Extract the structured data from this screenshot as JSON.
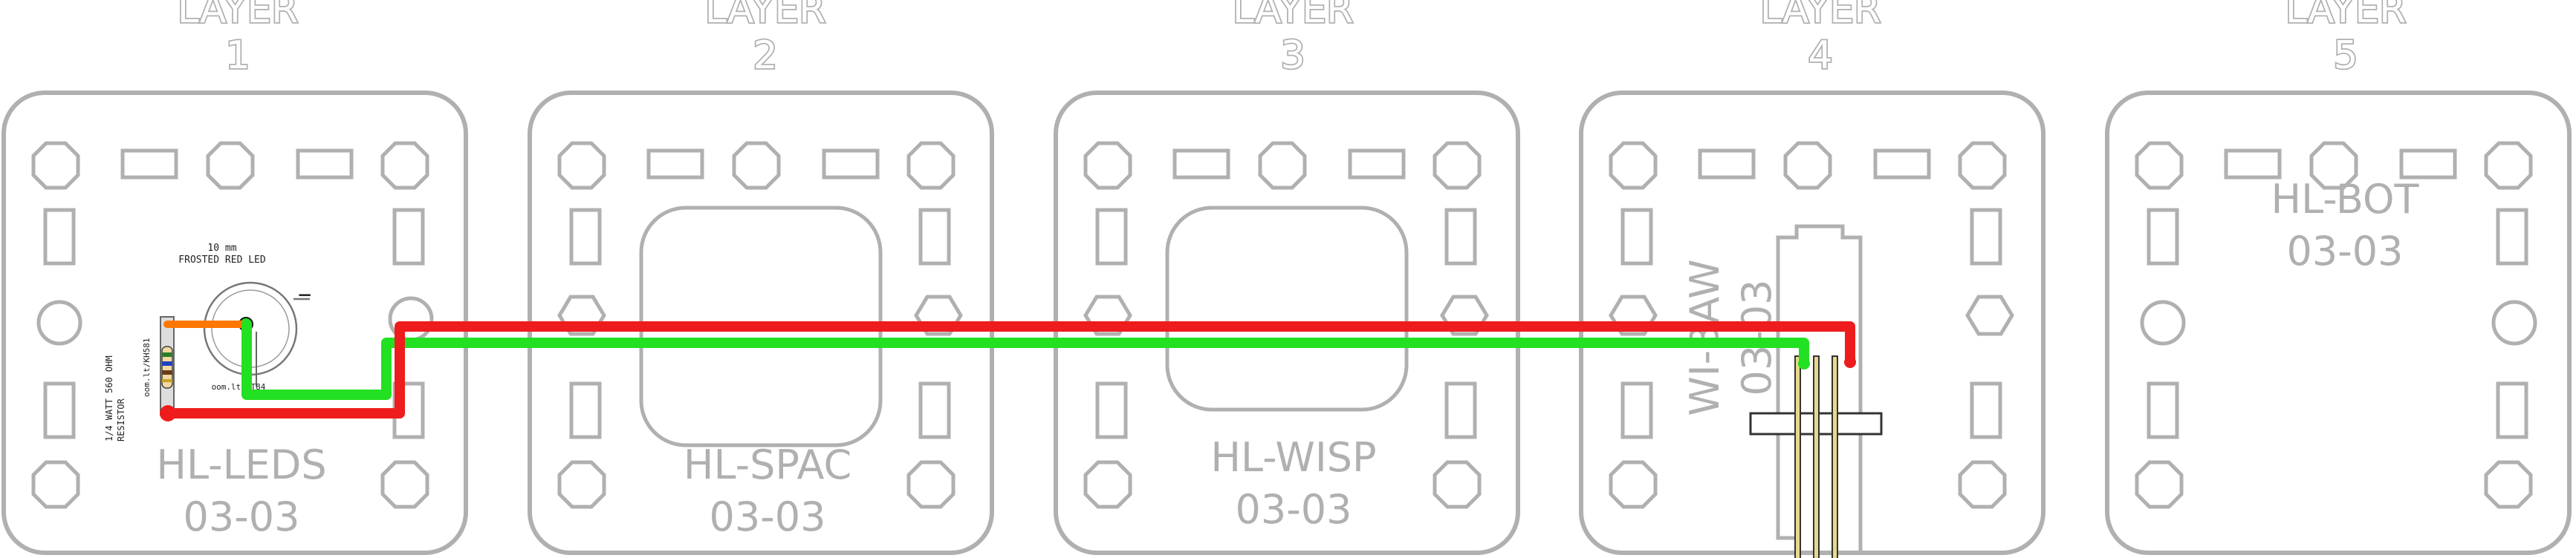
{
  "layers": [
    {
      "word": "LAYER",
      "number": "1",
      "board": {
        "name": "HL-LEDS",
        "rev": "03-03"
      }
    },
    {
      "word": "LAYER",
      "number": "2",
      "board": {
        "name": "HL-SPAC",
        "rev": "03-03"
      }
    },
    {
      "word": "LAYER",
      "number": "3",
      "board": {
        "name": "HL-WISP",
        "rev": "03-03"
      }
    },
    {
      "word": "LAYER",
      "number": "4",
      "board": {
        "name": "WI-BAW",
        "rev": "03-03"
      }
    },
    {
      "word": "LAYER",
      "number": "5",
      "board": {
        "name": "HL-BOT",
        "rev": "03-03"
      }
    }
  ],
  "led_board": {
    "led_size": "10 mm",
    "led_name": "FROSTED RED LED",
    "led_link": "oom.lt/KT84",
    "resistor_spec": "1/4 WATT 560 OHM",
    "resistor_name": "RESISTOR",
    "resistor_link": "oom.lt/KH581",
    "minus_sign": "−"
  },
  "colors": {
    "outline": "#b0b0b0",
    "wire_red": "#ee1c1c",
    "wire_green": "#22e022",
    "lead_orange": "#ff7700",
    "header_gold": "#e8d98a"
  }
}
